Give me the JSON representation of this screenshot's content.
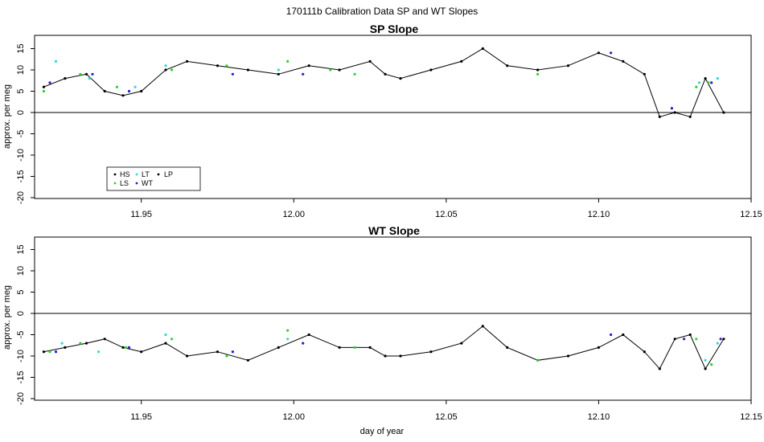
{
  "figure": {
    "title": "170111b   Calibration Data SP and WT Slopes",
    "xlabel": "day of year"
  },
  "legend": {
    "items": [
      {
        "label": "HS",
        "color": "#000000"
      },
      {
        "label": "LS",
        "color": "#2bd12b"
      },
      {
        "label": "LT",
        "color": "#34d6d6"
      },
      {
        "label": "WT",
        "color": "#1f1fd4"
      },
      {
        "label": "LP",
        "color": "#000000"
      }
    ]
  },
  "chart_data": [
    {
      "type": "line",
      "title": "SP Slope",
      "xlabel": "",
      "ylabel": "approx. per meg",
      "xlim": [
        11.915,
        12.15
      ],
      "ylim": [
        -20,
        18
      ],
      "xticks": [
        "11.95",
        "12.00",
        "12.05",
        "12.10",
        "12.15"
      ],
      "yticks": [
        "15",
        "10",
        "5",
        "0",
        "-5",
        "-10",
        "-15",
        "-20"
      ],
      "hline": 0,
      "series": [
        {
          "name": "HS",
          "color": "#000000",
          "x": [
            11.918,
            11.925,
            11.932,
            11.938,
            11.944,
            11.95,
            11.958,
            11.965,
            11.975,
            11.985,
            11.995,
            12.005,
            12.015,
            12.025,
            12.03,
            12.035,
            12.045,
            12.055,
            12.062,
            12.07,
            12.08,
            12.09,
            12.1,
            12.108,
            12.115,
            12.12,
            12.125,
            12.13,
            12.135,
            12.141
          ],
          "y": [
            6,
            8,
            9,
            5,
            4,
            5,
            10,
            12,
            11,
            10,
            9,
            11,
            10,
            12,
            9,
            8,
            10,
            12,
            15,
            11,
            10,
            11,
            14,
            12,
            9,
            -1,
            0,
            -1,
            8,
            0
          ]
        },
        {
          "name": "LS",
          "color": "#2bd12b",
          "x": [
            11.918,
            11.93,
            11.942,
            11.96,
            11.978,
            11.998,
            12.012,
            12.02,
            12.08,
            12.132,
            12.136
          ],
          "y": [
            5,
            9,
            6,
            10,
            11,
            12,
            10,
            9,
            9,
            6,
            7
          ]
        },
        {
          "name": "LT",
          "color": "#34d6d6",
          "x": [
            11.922,
            11.933,
            11.948,
            11.958,
            11.995,
            12.133,
            12.139
          ],
          "y": [
            12,
            8,
            6,
            11,
            10,
            7,
            8
          ]
        },
        {
          "name": "WT",
          "color": "#1f1fd4",
          "x": [
            11.92,
            11.934,
            11.946,
            11.98,
            12.003,
            12.104,
            12.124,
            12.137
          ],
          "y": [
            7,
            9,
            5,
            9,
            9,
            14,
            1,
            7
          ]
        }
      ]
    },
    {
      "type": "line",
      "title": "WT Slope",
      "xlabel": "day of year",
      "ylabel": "approx. per meg",
      "xlim": [
        11.915,
        12.15
      ],
      "ylim": [
        -20,
        18
      ],
      "xticks": [
        "11.95",
        "12.00",
        "12.05",
        "12.10",
        "12.15"
      ],
      "yticks": [
        "15",
        "10",
        "5",
        "0",
        "-5",
        "-10",
        "-15",
        "-20"
      ],
      "hline": 0,
      "series": [
        {
          "name": "HS",
          "color": "#000000",
          "x": [
            11.918,
            11.925,
            11.932,
            11.938,
            11.944,
            11.95,
            11.958,
            11.965,
            11.975,
            11.985,
            11.995,
            12.005,
            12.015,
            12.025,
            12.03,
            12.035,
            12.045,
            12.055,
            12.062,
            12.07,
            12.08,
            12.09,
            12.1,
            12.108,
            12.115,
            12.12,
            12.125,
            12.13,
            12.135,
            12.141
          ],
          "y": [
            -9,
            -8,
            -7,
            -6,
            -8,
            -9,
            -7,
            -10,
            -9,
            -11,
            -8,
            -5,
            -8,
            -8,
            -10,
            -10,
            -9,
            -7,
            -3,
            -8,
            -11,
            -10,
            -8,
            -5,
            -9,
            -13,
            -6,
            -5,
            -13,
            -6
          ]
        },
        {
          "name": "LS",
          "color": "#2bd12b",
          "x": [
            11.92,
            11.93,
            11.945,
            11.96,
            11.978,
            11.998,
            12.02,
            12.08,
            12.132,
            12.137
          ],
          "y": [
            -9,
            -7,
            -8,
            -6,
            -10,
            -4,
            -8,
            -11,
            -6,
            -12
          ]
        },
        {
          "name": "LT",
          "color": "#34d6d6",
          "x": [
            11.924,
            11.936,
            11.958,
            11.998,
            12.135,
            12.139
          ],
          "y": [
            -7,
            -9,
            -5,
            -6,
            -11,
            -7
          ]
        },
        {
          "name": "WT",
          "color": "#1f1fd4",
          "x": [
            11.922,
            11.946,
            11.98,
            12.003,
            12.104,
            12.128,
            12.14
          ],
          "y": [
            -9,
            -8,
            -9,
            -7,
            -5,
            -6,
            -6
          ]
        }
      ]
    }
  ]
}
